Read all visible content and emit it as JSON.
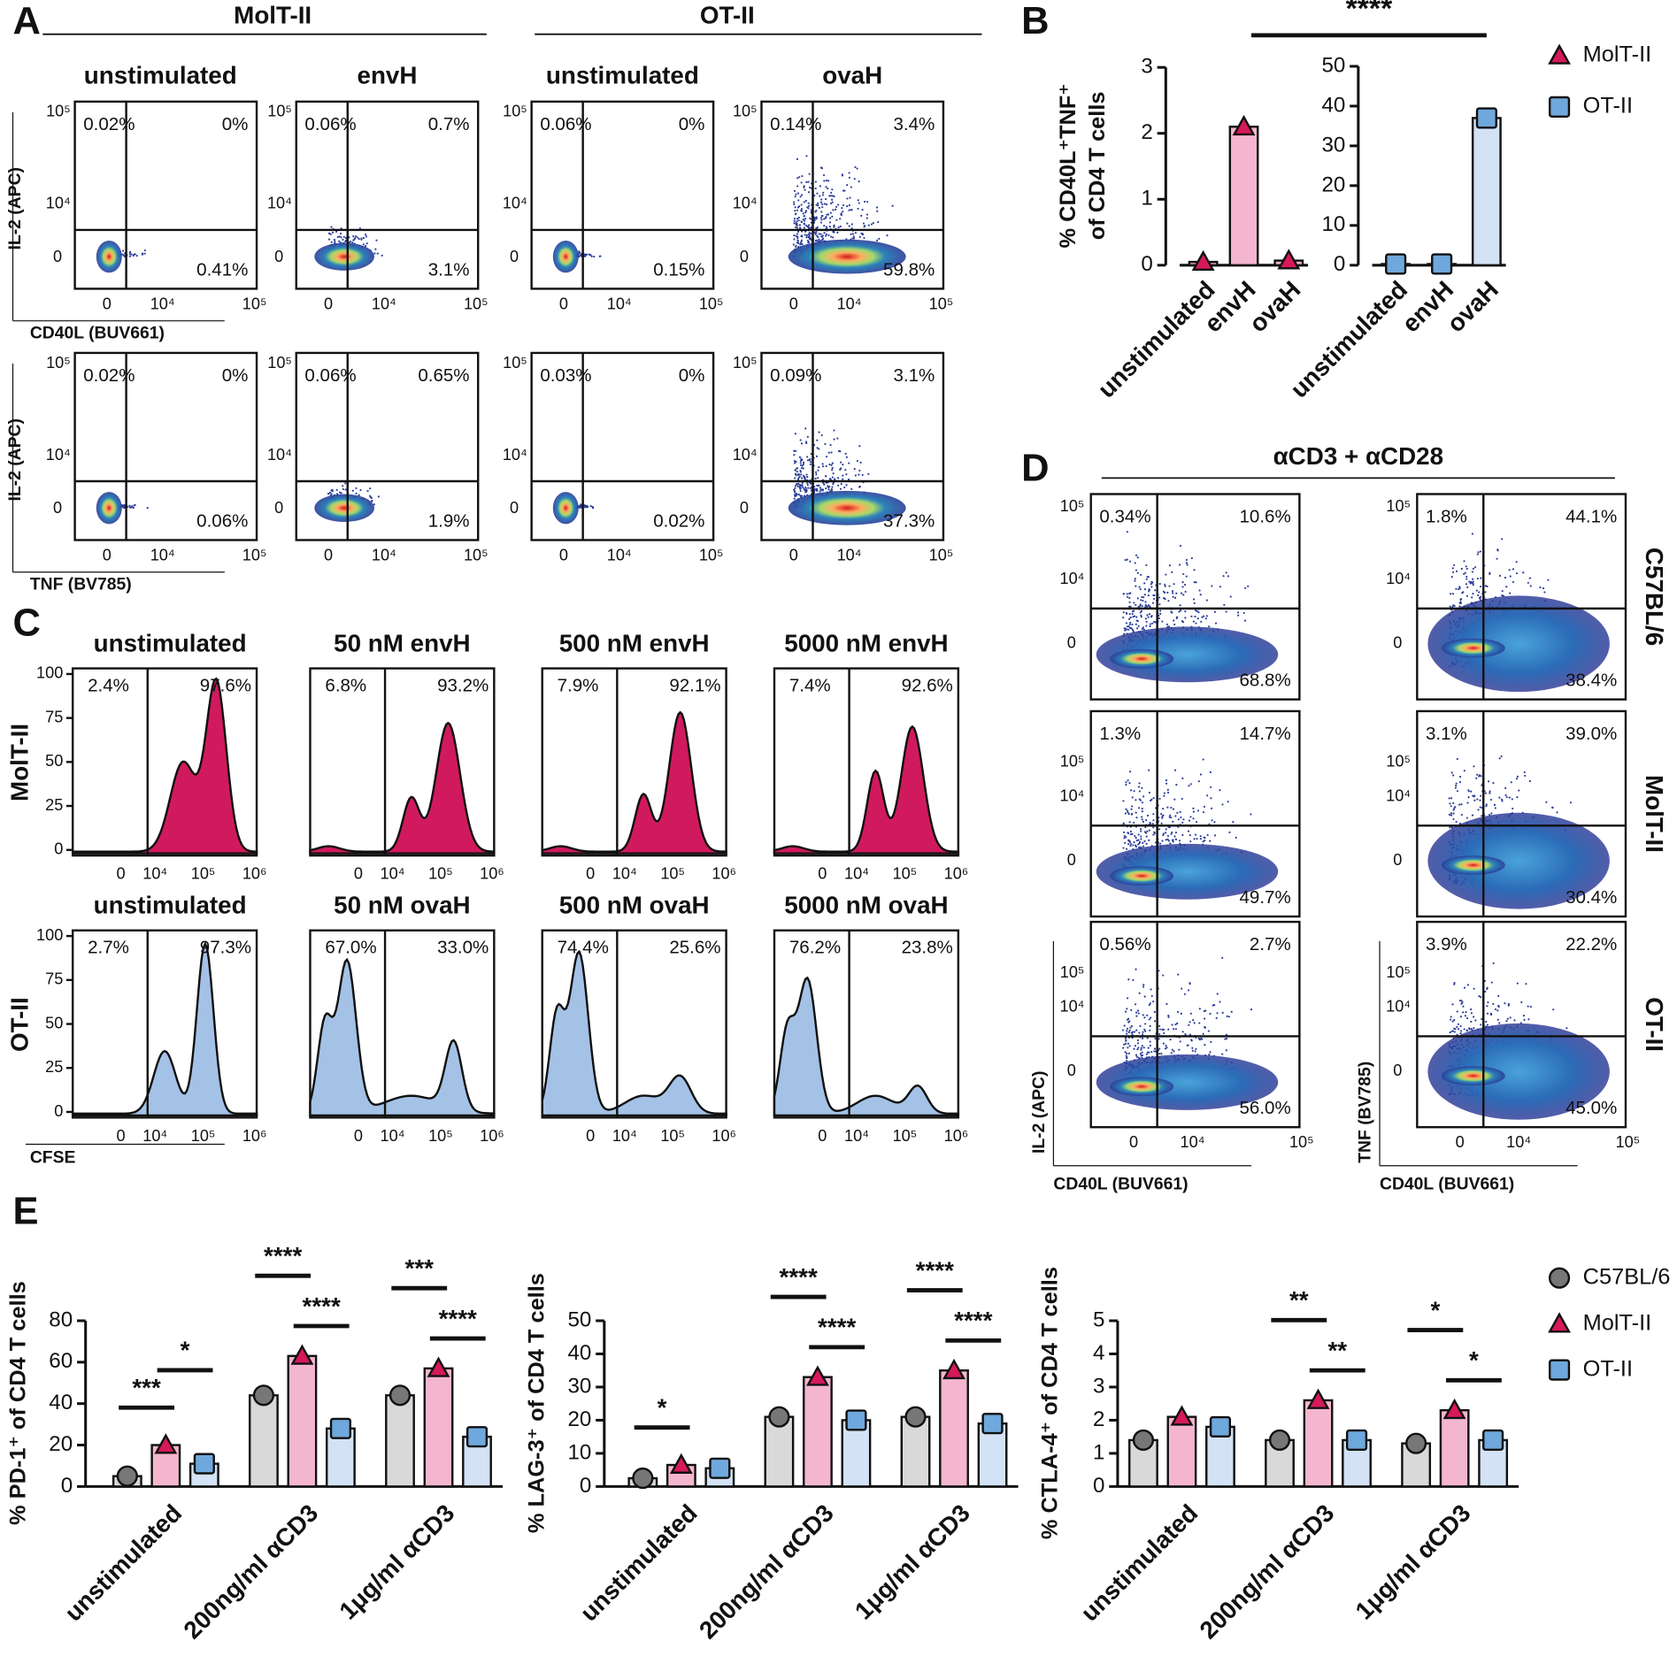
{
  "panel_labels": [
    "A",
    "B",
    "C",
    "D",
    "E"
  ],
  "panel_a": {
    "groups": [
      "MolT-II",
      "OT-II"
    ],
    "columns": [
      "unstimulated",
      "envH",
      "unstimulated",
      "ovaH"
    ],
    "y_label": "IL-2 (APC)",
    "x_labels": [
      "CD40L (BUV661)",
      "TNF (BV785)"
    ],
    "ticks": [
      "0",
      "10⁴",
      "10⁵"
    ],
    "quadrants": [
      [
        [
          "0.02%",
          "0%",
          "0.41%"
        ],
        [
          "0.06%",
          "0.7%",
          "3.1%"
        ],
        [
          "0.06%",
          "0%",
          "0.15%"
        ],
        [
          "0.14%",
          "3.4%",
          "59.8%"
        ]
      ],
      [
        [
          "0.02%",
          "0%",
          "0.06%"
        ],
        [
          "0.06%",
          "0.65%",
          "1.9%"
        ],
        [
          "0.03%",
          "0%",
          "0.02%"
        ],
        [
          "0.09%",
          "3.1%",
          "37.3%"
        ]
      ]
    ]
  },
  "panel_c": {
    "columns": [
      [
        "unstimulated",
        "50 nM envH",
        "500 nM envH",
        "5000 nM envH"
      ],
      [
        "unstimulated",
        "50 nM ovaH",
        "500 nM ovaH",
        "5000 nM ovaH"
      ]
    ],
    "rows": [
      "MolT-II",
      "OT-II"
    ],
    "colors": [
      "#d11a5e",
      "#a4c2e6"
    ],
    "ylim": [
      0,
      100
    ],
    "yticks": [
      0,
      25,
      50,
      75,
      100
    ],
    "xticks": [
      "0",
      "10⁴",
      "10⁵",
      "10⁶"
    ],
    "x_label": "CFSE",
    "percents": [
      [
        [
          "2.4%",
          "97.6%"
        ],
        [
          "6.8%",
          "93.2%"
        ],
        [
          "7.9%",
          "92.1%"
        ],
        [
          "7.4%",
          "92.6%"
        ]
      ],
      [
        [
          "2.7%",
          "97.3%"
        ],
        [
          "67.0%",
          "33.0%"
        ],
        [
          "74.4%",
          "25.6%"
        ],
        [
          "76.2%",
          "23.8%"
        ]
      ]
    ]
  },
  "panel_d": {
    "title": "αCD3 + αCD28",
    "rows": [
      "C57BL/6",
      "MolT-II",
      "OT-II"
    ],
    "y_labels": [
      "IL-2 (APC)",
      "TNF (BV785)"
    ],
    "x_label": "CD40L (BUV661)",
    "ticks": [
      "0",
      "10⁴",
      "10⁵"
    ],
    "quadrants": [
      [
        [
          "0.34%",
          "10.6%",
          "68.8%"
        ],
        [
          "1.3%",
          "14.7%",
          "49.7%"
        ],
        [
          "0.56%",
          "2.7%",
          "56.0%"
        ]
      ],
      [
        [
          "1.8%",
          "44.1%",
          "38.4%"
        ],
        [
          "3.1%",
          "39.0%",
          "30.4%"
        ],
        [
          "3.9%",
          "22.2%",
          "45.0%"
        ]
      ]
    ]
  },
  "chart_data": [
    {
      "type": "bar",
      "y_label": [
        "% CD40L⁺TNF⁺",
        "of CD4 T cells"
      ],
      "categories": [
        "unstimulated",
        "envH",
        "ovaH"
      ],
      "series": [
        {
          "name": "MolT-II",
          "color": "#f4b6cf",
          "marker_color": "#d6195b",
          "values": [
            0.05,
            2.1,
            0.07
          ]
        },
        {
          "name": "OT-II",
          "color": "#d3e2f5",
          "marker_color": "#6fa8dc",
          "values": [
            0.3,
            0.3,
            37
          ],
          "axis": "y2"
        }
      ],
      "ylim": [
        0,
        3
      ],
      "yticks": [
        0,
        1,
        2,
        3
      ],
      "y2lim": [
        0,
        50
      ],
      "y2ticks": [
        0,
        10,
        20,
        30,
        40,
        50
      ],
      "annotation": "****",
      "legend": "right"
    },
    {
      "type": "bar",
      "y_label": "% PD-1⁺ of CD4 T cells",
      "categories": [
        "unstimulated",
        "200ng/ml αCD3",
        "1μg/ml αCD3"
      ],
      "series": [
        {
          "name": "C57BL/6",
          "color": "#d9d9d9",
          "marker_color": "#777777",
          "values": [
            5,
            44,
            44
          ]
        },
        {
          "name": "MolT-II",
          "color": "#f4b6cf",
          "marker_color": "#d6195b",
          "values": [
            20,
            63,
            57
          ]
        },
        {
          "name": "OT-II",
          "color": "#d3e2f5",
          "marker_color": "#6fa8dc",
          "values": [
            11,
            28,
            24
          ]
        }
      ],
      "ylim": [
        0,
        80
      ],
      "yticks": [
        0,
        20,
        40,
        60,
        80
      ],
      "significance": [
        [
          "***",
          "*"
        ],
        [
          "****",
          "****"
        ],
        [
          "***",
          "****"
        ]
      ]
    },
    {
      "type": "bar",
      "y_label": "% LAG-3⁺ of CD4 T cells",
      "categories": [
        "unstimulated",
        "200ng/ml αCD3",
        "1μg/ml αCD3"
      ],
      "series": [
        {
          "name": "C57BL/6",
          "color": "#d9d9d9",
          "marker_color": "#777777",
          "values": [
            2.5,
            21,
            21
          ]
        },
        {
          "name": "MolT-II",
          "color": "#f4b6cf",
          "marker_color": "#d6195b",
          "values": [
            6.5,
            33,
            35
          ]
        },
        {
          "name": "OT-II",
          "color": "#d3e2f5",
          "marker_color": "#6fa8dc",
          "values": [
            5.5,
            20,
            19
          ]
        }
      ],
      "ylim": [
        0,
        50
      ],
      "yticks": [
        0,
        10,
        20,
        30,
        40,
        50
      ],
      "significance": [
        [
          "*"
        ],
        [
          "****",
          "****"
        ],
        [
          "****",
          "****"
        ]
      ]
    },
    {
      "type": "bar",
      "y_label": "% CTLA-4⁺ of CD4 T cells",
      "categories": [
        "unstimulated",
        "200ng/ml αCD3",
        "1μg/ml αCD3"
      ],
      "series": [
        {
          "name": "C57BL/6",
          "color": "#d9d9d9",
          "marker_color": "#777777",
          "values": [
            1.4,
            1.4,
            1.3
          ]
        },
        {
          "name": "MolT-II",
          "color": "#f4b6cf",
          "marker_color": "#d6195b",
          "values": [
            2.1,
            2.6,
            2.3
          ]
        },
        {
          "name": "OT-II",
          "color": "#d3e2f5",
          "marker_color": "#6fa8dc",
          "values": [
            1.8,
            1.4,
            1.4
          ]
        }
      ],
      "ylim": [
        0,
        5
      ],
      "yticks": [
        0,
        1,
        2,
        3,
        4,
        5
      ],
      "significance": [
        [],
        [
          "**",
          "**"
        ],
        [
          "*",
          "*"
        ]
      ],
      "legend": "right"
    }
  ]
}
